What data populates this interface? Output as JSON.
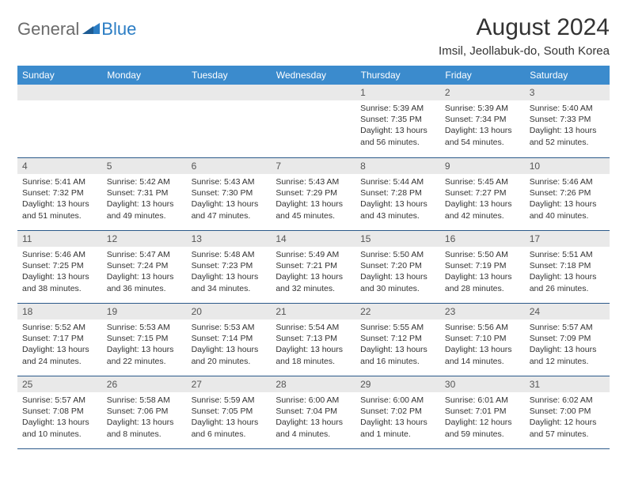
{
  "logo": {
    "part1": "General",
    "part2": "Blue",
    "icon_color": "#2b7dc4"
  },
  "title": "August 2024",
  "location": "Imsil, Jeollabuk-do, South Korea",
  "header_bg": "#3b8bcd",
  "header_fg": "#ffffff",
  "daynum_bg": "#e9e9e9",
  "border_color": "#2b5a8a",
  "columns": [
    "Sunday",
    "Monday",
    "Tuesday",
    "Wednesday",
    "Thursday",
    "Friday",
    "Saturday"
  ],
  "weeks": [
    [
      null,
      null,
      null,
      null,
      {
        "n": "1",
        "sr": "5:39 AM",
        "ss": "7:35 PM",
        "dl": "13 hours and 56 minutes."
      },
      {
        "n": "2",
        "sr": "5:39 AM",
        "ss": "7:34 PM",
        "dl": "13 hours and 54 minutes."
      },
      {
        "n": "3",
        "sr": "5:40 AM",
        "ss": "7:33 PM",
        "dl": "13 hours and 52 minutes."
      }
    ],
    [
      {
        "n": "4",
        "sr": "5:41 AM",
        "ss": "7:32 PM",
        "dl": "13 hours and 51 minutes."
      },
      {
        "n": "5",
        "sr": "5:42 AM",
        "ss": "7:31 PM",
        "dl": "13 hours and 49 minutes."
      },
      {
        "n": "6",
        "sr": "5:43 AM",
        "ss": "7:30 PM",
        "dl": "13 hours and 47 minutes."
      },
      {
        "n": "7",
        "sr": "5:43 AM",
        "ss": "7:29 PM",
        "dl": "13 hours and 45 minutes."
      },
      {
        "n": "8",
        "sr": "5:44 AM",
        "ss": "7:28 PM",
        "dl": "13 hours and 43 minutes."
      },
      {
        "n": "9",
        "sr": "5:45 AM",
        "ss": "7:27 PM",
        "dl": "13 hours and 42 minutes."
      },
      {
        "n": "10",
        "sr": "5:46 AM",
        "ss": "7:26 PM",
        "dl": "13 hours and 40 minutes."
      }
    ],
    [
      {
        "n": "11",
        "sr": "5:46 AM",
        "ss": "7:25 PM",
        "dl": "13 hours and 38 minutes."
      },
      {
        "n": "12",
        "sr": "5:47 AM",
        "ss": "7:24 PM",
        "dl": "13 hours and 36 minutes."
      },
      {
        "n": "13",
        "sr": "5:48 AM",
        "ss": "7:23 PM",
        "dl": "13 hours and 34 minutes."
      },
      {
        "n": "14",
        "sr": "5:49 AM",
        "ss": "7:21 PM",
        "dl": "13 hours and 32 minutes."
      },
      {
        "n": "15",
        "sr": "5:50 AM",
        "ss": "7:20 PM",
        "dl": "13 hours and 30 minutes."
      },
      {
        "n": "16",
        "sr": "5:50 AM",
        "ss": "7:19 PM",
        "dl": "13 hours and 28 minutes."
      },
      {
        "n": "17",
        "sr": "5:51 AM",
        "ss": "7:18 PM",
        "dl": "13 hours and 26 minutes."
      }
    ],
    [
      {
        "n": "18",
        "sr": "5:52 AM",
        "ss": "7:17 PM",
        "dl": "13 hours and 24 minutes."
      },
      {
        "n": "19",
        "sr": "5:53 AM",
        "ss": "7:15 PM",
        "dl": "13 hours and 22 minutes."
      },
      {
        "n": "20",
        "sr": "5:53 AM",
        "ss": "7:14 PM",
        "dl": "13 hours and 20 minutes."
      },
      {
        "n": "21",
        "sr": "5:54 AM",
        "ss": "7:13 PM",
        "dl": "13 hours and 18 minutes."
      },
      {
        "n": "22",
        "sr": "5:55 AM",
        "ss": "7:12 PM",
        "dl": "13 hours and 16 minutes."
      },
      {
        "n": "23",
        "sr": "5:56 AM",
        "ss": "7:10 PM",
        "dl": "13 hours and 14 minutes."
      },
      {
        "n": "24",
        "sr": "5:57 AM",
        "ss": "7:09 PM",
        "dl": "13 hours and 12 minutes."
      }
    ],
    [
      {
        "n": "25",
        "sr": "5:57 AM",
        "ss": "7:08 PM",
        "dl": "13 hours and 10 minutes."
      },
      {
        "n": "26",
        "sr": "5:58 AM",
        "ss": "7:06 PM",
        "dl": "13 hours and 8 minutes."
      },
      {
        "n": "27",
        "sr": "5:59 AM",
        "ss": "7:05 PM",
        "dl": "13 hours and 6 minutes."
      },
      {
        "n": "28",
        "sr": "6:00 AM",
        "ss": "7:04 PM",
        "dl": "13 hours and 4 minutes."
      },
      {
        "n": "29",
        "sr": "6:00 AM",
        "ss": "7:02 PM",
        "dl": "13 hours and 1 minute."
      },
      {
        "n": "30",
        "sr": "6:01 AM",
        "ss": "7:01 PM",
        "dl": "12 hours and 59 minutes."
      },
      {
        "n": "31",
        "sr": "6:02 AM",
        "ss": "7:00 PM",
        "dl": "12 hours and 57 minutes."
      }
    ]
  ],
  "labels": {
    "sunrise": "Sunrise:",
    "sunset": "Sunset:",
    "daylight": "Daylight:"
  }
}
